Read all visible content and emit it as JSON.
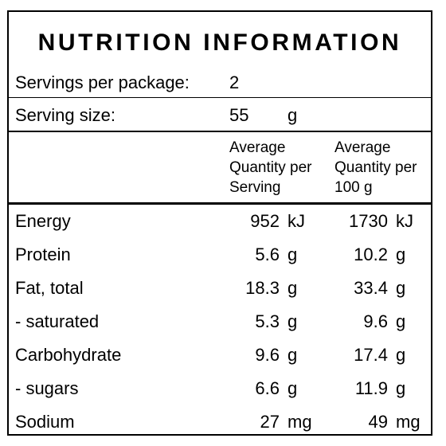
{
  "title": "NUTRITION INFORMATION",
  "servings": {
    "label": "Servings per package:",
    "value": "2"
  },
  "serving_size": {
    "label": "Serving size:",
    "value": "55",
    "unit": "g"
  },
  "headers": {
    "per_serving": "Average\nQuantity per\nServing",
    "per_100g": "Average\nQuantity per\n100 g"
  },
  "rows": [
    {
      "name": "Energy",
      "serving": "952",
      "serving_unit": "kJ",
      "per100": "1730",
      "per100_unit": "kJ"
    },
    {
      "name": "Protein",
      "serving": "5.6",
      "serving_unit": "g",
      "per100": "10.2",
      "per100_unit": "g"
    },
    {
      "name": "Fat, total",
      "serving": "18.3",
      "serving_unit": "g",
      "per100": "33.4",
      "per100_unit": "g"
    },
    {
      "name": "- saturated",
      "serving": "5.3",
      "serving_unit": "g",
      "per100": "9.6",
      "per100_unit": "g"
    },
    {
      "name": "Carbohydrate",
      "serving": "9.6",
      "serving_unit": "g",
      "per100": "17.4",
      "per100_unit": "g"
    },
    {
      "name": "- sugars",
      "serving": "6.6",
      "serving_unit": "g",
      "per100": "11.9",
      "per100_unit": "g"
    },
    {
      "name": "Sodium",
      "serving": "27",
      "serving_unit": "mg",
      "per100": "49",
      "per100_unit": "mg"
    }
  ]
}
